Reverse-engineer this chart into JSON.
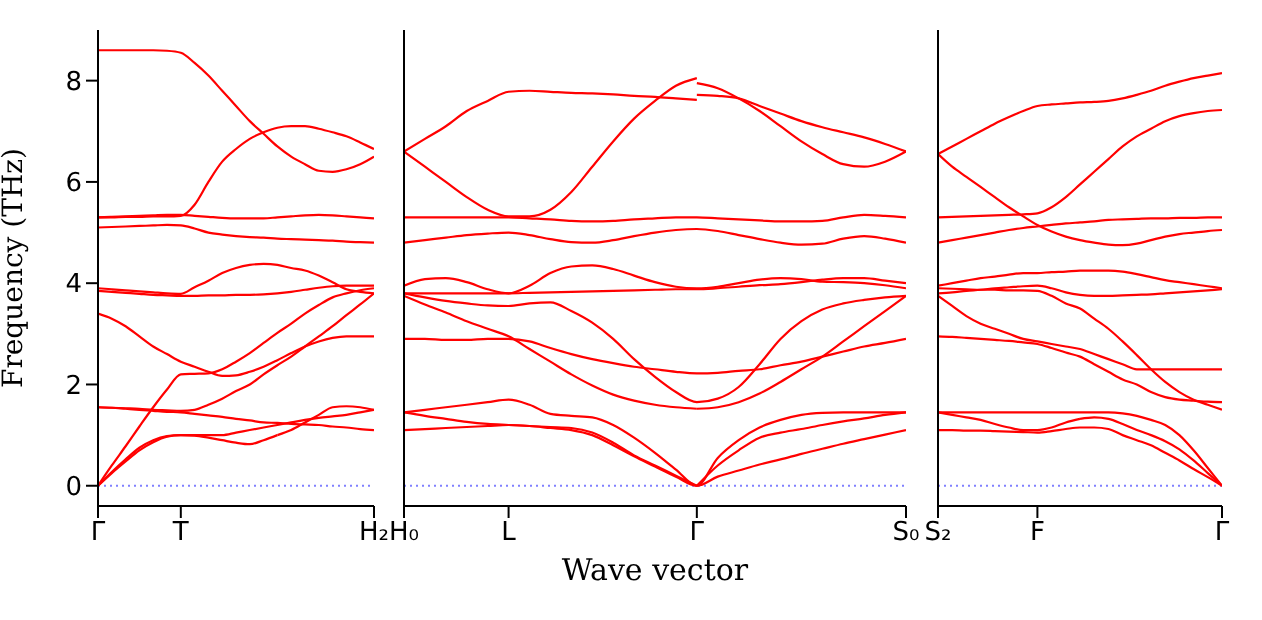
{
  "chart_data": [
    {
      "type": "line",
      "ylabel": "Frequency (THz)",
      "categories": [
        "Γ",
        null,
        null,
        null,
        null,
        null,
        "T",
        null,
        null,
        null,
        null,
        null,
        null,
        null,
        null,
        null,
        null,
        null,
        null,
        null,
        "H₂"
      ],
      "ylim": [
        -0.4,
        9
      ],
      "yticks": [
        0,
        2,
        4,
        6,
        8
      ],
      "line_style": "solid",
      "marker": "none",
      "ref_lines": [
        {
          "axis": "y",
          "value": 0,
          "color": "#8080ff",
          "line_style": "dotted"
        }
      ],
      "series": [
        {
          "color": "#ff0000",
          "values": [
            8.6,
            8.6,
            8.6,
            8.6,
            8.6,
            8.59,
            8.55,
            8.35,
            8.1,
            7.8,
            7.5,
            7.2,
            6.95,
            6.7,
            6.5,
            6.35,
            6.22,
            6.2,
            6.25,
            6.35,
            6.5
          ]
        },
        {
          "color": "#ff0000",
          "values": [
            5.3,
            5.3,
            5.31,
            5.31,
            5.32,
            5.32,
            5.33,
            5.55,
            6.0,
            6.4,
            6.65,
            6.85,
            6.98,
            7.07,
            7.1,
            7.1,
            7.05,
            6.98,
            6.9,
            6.78,
            6.65
          ]
        },
        {
          "color": "#ff0000",
          "values": [
            5.3,
            5.31,
            5.32,
            5.33,
            5.34,
            5.35,
            5.35,
            5.33,
            5.31,
            5.29,
            5.28,
            5.28,
            5.28,
            5.3,
            5.32,
            5.34,
            5.35,
            5.34,
            5.32,
            5.3,
            5.28
          ]
        },
        {
          "color": "#ff0000",
          "values": [
            5.1,
            5.11,
            5.12,
            5.13,
            5.14,
            5.15,
            5.14,
            5.08,
            5.0,
            4.96,
            4.93,
            4.91,
            4.9,
            4.88,
            4.87,
            4.86,
            4.85,
            4.84,
            4.82,
            4.81,
            4.8
          ]
        },
        {
          "color": "#ff0000",
          "values": [
            3.9,
            3.88,
            3.86,
            3.84,
            3.82,
            3.8,
            3.79,
            3.92,
            4.05,
            4.2,
            4.3,
            4.36,
            4.38,
            4.36,
            4.3,
            4.25,
            4.15,
            4.02,
            3.88,
            3.83,
            3.8
          ]
        },
        {
          "color": "#ff0000",
          "values": [
            3.85,
            3.83,
            3.81,
            3.79,
            3.77,
            3.76,
            3.75,
            3.75,
            3.76,
            3.76,
            3.77,
            3.77,
            3.78,
            3.8,
            3.83,
            3.87,
            3.91,
            3.94,
            3.95,
            3.95,
            3.95
          ]
        },
        {
          "color": "#ff0000",
          "values": [
            3.4,
            3.3,
            3.15,
            2.95,
            2.75,
            2.6,
            2.45,
            2.35,
            2.25,
            2.17,
            2.18,
            2.25,
            2.35,
            2.48,
            2.62,
            2.75,
            2.85,
            2.92,
            2.95,
            2.95,
            2.95
          ]
        },
        {
          "color": "#ff0000",
          "values": [
            0,
            0.4,
            0.78,
            1.17,
            1.55,
            1.9,
            2.2,
            2.21,
            2.22,
            2.3,
            2.45,
            2.62,
            2.82,
            3.02,
            3.2,
            3.4,
            3.57,
            3.72,
            3.8,
            3.86,
            3.9
          ]
        },
        {
          "color": "#ff0000",
          "values": [
            1.55,
            1.54,
            1.53,
            1.52,
            1.5,
            1.49,
            1.48,
            1.5,
            1.6,
            1.72,
            1.87,
            2.0,
            2.2,
            2.38,
            2.55,
            2.75,
            2.95,
            3.15,
            3.37,
            3.58,
            3.8
          ]
        },
        {
          "color": "#ff0000",
          "values": [
            1.55,
            1.54,
            1.52,
            1.5,
            1.48,
            1.46,
            1.45,
            1.42,
            1.39,
            1.36,
            1.32,
            1.29,
            1.25,
            1.24,
            1.22,
            1.21,
            1.2,
            1.17,
            1.15,
            1.12,
            1.1
          ]
        },
        {
          "color": "#ff0000",
          "values": [
            0,
            0.25,
            0.48,
            0.7,
            0.86,
            0.97,
            1.0,
            1.0,
            1.0,
            1.0,
            1.05,
            1.1,
            1.15,
            1.2,
            1.25,
            1.3,
            1.34,
            1.37,
            1.4,
            1.45,
            1.5
          ]
        },
        {
          "color": "#ff0000",
          "values": [
            0,
            0.27,
            0.52,
            0.75,
            0.9,
            0.98,
            1.0,
            0.99,
            0.95,
            0.9,
            0.85,
            0.82,
            0.9,
            1.0,
            null,
            null,
            null,
            null,
            null,
            null,
            null
          ]
        },
        {
          "color": "#ff0000",
          "values": [
            null,
            null,
            null,
            null,
            null,
            null,
            null,
            null,
            null,
            null,
            null,
            null,
            null,
            1.0,
            1.1,
            1.25,
            1.4,
            1.55,
            1.57,
            1.55,
            1.5
          ]
        }
      ]
    },
    {
      "type": "line",
      "xlabel": "Wave vector",
      "tick_labels": "x",
      "categories": [
        "H₀",
        null,
        null,
        null,
        null,
        "L",
        null,
        null,
        null,
        null,
        null,
        null,
        null,
        null,
        "Γ",
        null,
        null,
        null,
        null,
        null,
        null,
        null,
        null,
        null,
        "S₀"
      ],
      "ylim": [
        -0.4,
        9
      ],
      "yticks": [
        0,
        2,
        4,
        6,
        8
      ],
      "line_style": "solid",
      "marker": "none",
      "ref_lines": [
        {
          "axis": "y",
          "value": 0,
          "color": "#8080ff",
          "line_style": "dotted"
        }
      ],
      "series": [
        {
          "color": "#ff0000",
          "values": [
            6.6,
            6.85,
            7.1,
            7.4,
            7.6,
            7.78,
            7.8,
            7.78,
            7.76,
            7.75,
            7.73,
            7.7,
            7.68,
            7.65,
            7.62,
            null,
            null,
            null,
            null,
            null,
            null,
            null,
            null,
            null,
            null
          ]
        },
        {
          "color": "#ff0000",
          "values": [
            6.6,
            6.3,
            6.0,
            5.7,
            5.45,
            5.32,
            5.32,
            5.45,
            5.8,
            6.3,
            6.8,
            7.25,
            7.6,
            7.9,
            8.05,
            null,
            null,
            null,
            null,
            null,
            null,
            null,
            null,
            null,
            null
          ]
        },
        {
          "color": "#ff0000",
          "values": [
            null,
            null,
            null,
            null,
            null,
            null,
            null,
            null,
            null,
            null,
            null,
            null,
            null,
            null,
            7.95,
            7.85,
            7.65,
            7.4,
            7.1,
            6.8,
            6.55,
            6.35,
            6.3,
            6.4,
            6.6
          ]
        },
        {
          "color": "#ff0000",
          "values": [
            null,
            null,
            null,
            null,
            null,
            null,
            null,
            null,
            null,
            null,
            null,
            null,
            null,
            null,
            7.72,
            7.7,
            7.65,
            7.5,
            7.35,
            7.2,
            7.08,
            6.98,
            6.88,
            6.75,
            6.6
          ]
        },
        {
          "color": "#ff0000",
          "values": [
            5.3,
            5.3,
            5.3,
            5.3,
            5.3,
            5.3,
            5.28,
            5.26,
            5.23,
            5.22,
            5.23,
            5.26,
            5.28,
            5.3,
            5.3,
            5.28,
            5.26,
            5.24,
            5.22,
            5.22,
            5.23,
            5.3,
            5.35,
            5.33,
            5.3
          ]
        },
        {
          "color": "#ff0000",
          "values": [
            4.8,
            4.85,
            4.9,
            4.95,
            4.98,
            5.0,
            4.95,
            4.87,
            4.81,
            4.8,
            4.85,
            4.93,
            5.0,
            5.05,
            5.07,
            5.03,
            4.95,
            4.87,
            4.8,
            4.76,
            4.78,
            4.88,
            4.93,
            4.88,
            4.8
          ]
        },
        {
          "color": "#ff0000",
          "values": [
            3.95,
            4.08,
            4.1,
            4.02,
            3.88,
            3.8,
            3.95,
            4.2,
            4.33,
            4.35,
            4.28,
            4.15,
            4.02,
            3.93,
            3.9,
            3.93,
            4.0,
            4.07,
            4.1,
            4.08,
            4.03,
            4.02,
            4.0,
            3.96,
            3.9
          ]
        },
        {
          "color": "#ff0000",
          "values": [
            3.8,
            3.8,
            3.8,
            3.8,
            3.8,
            3.8,
            3.81,
            3.82,
            3.83,
            3.84,
            3.85,
            3.86,
            3.87,
            3.88,
            3.88,
            3.9,
            3.93,
            3.96,
            3.98,
            4.02,
            4.07,
            4.1,
            4.1,
            4.05,
            4.0
          ]
        },
        {
          "color": "#ff0000",
          "values": [
            3.8,
            3.72,
            3.65,
            3.6,
            3.56,
            3.55,
            3.6,
            3.62,
            3.45,
            3.22,
            2.9,
            2.5,
            2.15,
            1.85,
            1.65,
            1.72,
            1.95,
            2.4,
            2.9,
            3.25,
            3.48,
            3.6,
            3.67,
            3.72,
            3.75
          ]
        },
        {
          "color": "#ff0000",
          "values": [
            3.75,
            3.58,
            3.42,
            3.25,
            3.1,
            2.95,
            2.7,
            2.45,
            2.2,
            1.98,
            1.8,
            1.68,
            1.6,
            1.55,
            1.52,
            null,
            null,
            null,
            null,
            null,
            null,
            null,
            null,
            null,
            null
          ]
        },
        {
          "color": "#ff0000",
          "values": [
            null,
            null,
            null,
            null,
            null,
            null,
            null,
            null,
            null,
            null,
            null,
            null,
            null,
            null,
            1.52,
            1.55,
            1.65,
            1.82,
            2.05,
            2.3,
            2.55,
            2.85,
            3.15,
            3.45,
            3.75
          ]
        },
        {
          "color": "#ff0000",
          "values": [
            2.9,
            2.9,
            2.88,
            2.88,
            2.9,
            2.9,
            2.85,
            2.72,
            2.6,
            2.5,
            2.42,
            2.35,
            2.3,
            2.25,
            2.22,
            2.23,
            2.27,
            2.3,
            2.38,
            2.45,
            2.55,
            2.65,
            2.75,
            2.82,
            2.9
          ]
        },
        {
          "color": "#ff0000",
          "values": [
            1.45,
            1.5,
            1.55,
            1.6,
            1.65,
            1.7,
            1.6,
            1.42,
            1.38,
            1.35,
            1.2,
            0.95,
            0.65,
            0.32,
            0,
            0.55,
            0.9,
            1.15,
            1.3,
            1.4,
            1.44,
            1.45,
            1.45,
            1.45,
            1.45
          ]
        },
        {
          "color": "#ff0000",
          "values": [
            1.45,
            1.38,
            1.32,
            1.26,
            1.22,
            1.2,
            1.18,
            1.16,
            1.14,
            1.05,
            0.85,
            0.6,
            0.4,
            0.2,
            0,
            null,
            null,
            null,
            null,
            null,
            null,
            null,
            null,
            null,
            null
          ]
        },
        {
          "color": "#ff0000",
          "values": [
            null,
            null,
            null,
            null,
            null,
            null,
            null,
            null,
            null,
            null,
            null,
            null,
            null,
            null,
            0,
            0.4,
            0.7,
            0.95,
            1.05,
            1.12,
            1.2,
            1.27,
            1.33,
            1.4,
            1.45
          ]
        },
        {
          "color": "#ff0000",
          "values": [
            1.1,
            1.12,
            1.14,
            1.16,
            1.18,
            1.2,
            1.18,
            1.14,
            1.1,
            1.0,
            0.8,
            0.58,
            0.38,
            0.18,
            0,
            0.18,
            0.3,
            0.42,
            0.52,
            0.63,
            0.73,
            0.83,
            0.92,
            1.01,
            1.1
          ]
        }
      ]
    },
    {
      "type": "line",
      "tick_labels": "x",
      "categories": [
        "S₂",
        null,
        null,
        null,
        null,
        null,
        null,
        "F",
        null,
        null,
        null,
        null,
        null,
        null,
        null,
        null,
        null,
        null,
        null,
        null,
        "Γ"
      ],
      "ylim": [
        -0.4,
        9
      ],
      "yticks": [
        0,
        2,
        4,
        6,
        8
      ],
      "line_style": "solid",
      "marker": "none",
      "ref_lines": [
        {
          "axis": "y",
          "value": 0,
          "color": "#8080ff",
          "line_style": "dotted"
        }
      ],
      "series": [
        {
          "color": "#ff0000",
          "values": [
            6.55,
            6.7,
            6.85,
            7.0,
            7.15,
            7.28,
            7.4,
            7.5,
            7.53,
            7.55,
            7.57,
            7.58,
            7.6,
            7.65,
            7.72,
            7.8,
            7.9,
            7.98,
            8.05,
            8.1,
            8.15
          ]
        },
        {
          "color": "#ff0000",
          "values": [
            6.55,
            6.3,
            6.1,
            5.9,
            5.7,
            5.5,
            5.32,
            5.15,
            5.02,
            4.92,
            4.85,
            4.8,
            4.76,
            4.75,
            4.78,
            4.85,
            4.92,
            4.97,
            5.0,
            5.03,
            5.05
          ]
        },
        {
          "color": "#ff0000",
          "values": [
            5.3,
            5.31,
            5.32,
            5.33,
            5.34,
            5.35,
            5.36,
            5.38,
            5.5,
            5.7,
            5.95,
            6.2,
            6.45,
            6.7,
            6.9,
            7.05,
            7.2,
            7.3,
            7.36,
            7.4,
            7.42
          ]
        },
        {
          "color": "#ff0000",
          "values": [
            4.8,
            4.85,
            4.9,
            4.95,
            5.0,
            5.05,
            5.09,
            5.12,
            5.15,
            5.18,
            5.2,
            5.22,
            5.25,
            5.26,
            5.27,
            5.28,
            5.28,
            5.29,
            5.29,
            5.3,
            5.3
          ]
        },
        {
          "color": "#ff0000",
          "values": [
            3.95,
            4.0,
            4.05,
            4.1,
            4.13,
            4.17,
            4.2,
            4.2,
            4.22,
            4.23,
            4.25,
            4.25,
            4.25,
            4.23,
            4.18,
            4.12,
            4.06,
            4.02,
            3.98,
            3.94,
            3.9
          ]
        },
        {
          "color": "#ff0000",
          "values": [
            3.8,
            3.82,
            3.85,
            3.87,
            3.9,
            3.92,
            3.94,
            3.95,
            3.9,
            3.82,
            3.77,
            3.75,
            3.75,
            3.76,
            3.77,
            3.78,
            3.8,
            3.82,
            3.84,
            3.86,
            3.88
          ]
        },
        {
          "color": "#ff0000",
          "values": [
            3.9,
            3.89,
            3.88,
            3.87,
            3.87,
            3.86,
            3.86,
            3.85,
            3.75,
            3.6,
            3.5,
            3.3,
            3.1,
            2.85,
            2.58,
            2.3,
            2.05,
            1.85,
            1.7,
            1.6,
            1.5
          ]
        },
        {
          "color": "#ff0000",
          "values": [
            3.75,
            3.55,
            3.35,
            3.2,
            3.1,
            3.0,
            2.9,
            2.85,
            2.8,
            2.75,
            2.7,
            2.6,
            2.5,
            2.4,
            2.3,
            2.3,
            2.3,
            2.3,
            2.3,
            2.3,
            2.3
          ]
        },
        {
          "color": "#ff0000",
          "values": [
            2.95,
            2.94,
            2.92,
            2.9,
            2.88,
            2.86,
            2.83,
            2.8,
            2.72,
            2.63,
            2.55,
            2.4,
            2.25,
            2.1,
            2.0,
            1.85,
            1.75,
            1.7,
            1.68,
            1.66,
            1.65
          ]
        },
        {
          "color": "#ff0000",
          "values": [
            1.45,
            1.45,
            1.45,
            1.45,
            1.45,
            1.45,
            1.45,
            1.45,
            1.45,
            1.45,
            1.45,
            1.45,
            1.45,
            1.43,
            1.38,
            1.3,
            1.2,
            1.0,
            0.7,
            0.35,
            0
          ]
        },
        {
          "color": "#ff0000",
          "values": [
            1.45,
            1.4,
            1.35,
            1.3,
            1.22,
            1.15,
            1.1,
            1.1,
            1.15,
            1.25,
            1.32,
            null,
            null,
            null,
            null,
            null,
            null,
            null,
            null,
            null,
            null
          ]
        },
        {
          "color": "#ff0000",
          "values": [
            null,
            null,
            null,
            null,
            null,
            null,
            null,
            null,
            null,
            null,
            1.32,
            1.35,
            1.32,
            1.22,
            1.1,
            1.0,
            0.88,
            0.72,
            0.5,
            0.25,
            0
          ]
        },
        {
          "color": "#ff0000",
          "values": [
            1.1,
            1.1,
            1.09,
            1.09,
            1.08,
            1.07,
            1.06,
            1.05,
            1.08,
            1.12,
            1.15,
            1.15,
            1.12,
            1.0,
            0.9,
            0.8,
            0.65,
            0.5,
            0.33,
            0.17,
            0
          ]
        }
      ]
    }
  ]
}
